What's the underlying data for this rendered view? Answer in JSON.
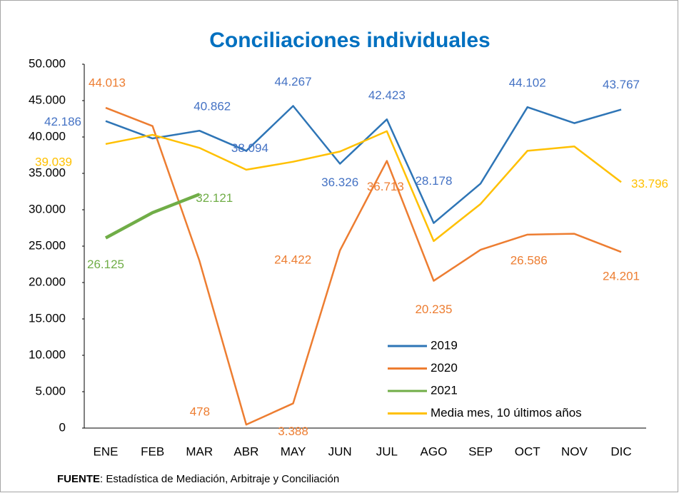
{
  "chart_data": {
    "type": "line",
    "title": "Conciliaciones individuales",
    "source_label": "FUENTE",
    "source_text": ": Estadística de Mediación, Arbitraje y Conciliación",
    "categories": [
      "ENE",
      "FEB",
      "MAR",
      "ABR",
      "MAY",
      "JUN",
      "JUL",
      "AGO",
      "SEP",
      "OCT",
      "NOV",
      "DIC"
    ],
    "series": [
      {
        "name": "2019",
        "color": "#2e75b6",
        "label_color": "#4472c4",
        "values": [
          42186,
          39800,
          40862,
          38094,
          44267,
          36326,
          42423,
          28178,
          33600,
          44102,
          41900,
          43767
        ],
        "value_labels": [
          "42.186",
          null,
          "40.862",
          "38.094",
          "44.267",
          "36.326",
          "42.423",
          "28.178",
          null,
          "44.102",
          null,
          "43.767"
        ]
      },
      {
        "name": "2020",
        "color": "#ed7d31",
        "label_color": "#ed7d31",
        "values": [
          44013,
          41500,
          23000,
          478,
          3388,
          24422,
          36713,
          20235,
          24500,
          26586,
          26700,
          24201
        ],
        "value_labels": [
          "44.013",
          null,
          null,
          "478",
          "3.388",
          "24.422",
          "36.713",
          "20.235",
          null,
          "26.586",
          null,
          "24.201"
        ]
      },
      {
        "name": "2021",
        "color": "#70ad47",
        "label_color": "#70ad47",
        "values": [
          26125,
          29600,
          32121,
          null,
          null,
          null,
          null,
          null,
          null,
          null,
          null,
          null
        ],
        "value_labels": [
          "26.125",
          null,
          "32.121",
          null,
          null,
          null,
          null,
          null,
          null,
          null,
          null,
          null
        ]
      },
      {
        "name": "Media mes, 10 últimos años",
        "color": "#ffc000",
        "label_color": "#ffc000",
        "values": [
          39039,
          40300,
          38500,
          35500,
          36600,
          38000,
          40800,
          25700,
          30800,
          38100,
          38700,
          33796
        ],
        "value_labels": [
          "39.039",
          null,
          null,
          null,
          null,
          null,
          null,
          null,
          null,
          null,
          null,
          "33.796"
        ]
      }
    ],
    "ylim": [
      0,
      50000
    ],
    "yticks": [
      {
        "value": 0,
        "label": "0"
      },
      {
        "value": 5000,
        "label": "5.000"
      },
      {
        "value": 10000,
        "label": "10.000"
      },
      {
        "value": 15000,
        "label": "15.000"
      },
      {
        "value": 20000,
        "label": "20.000"
      },
      {
        "value": 25000,
        "label": "25.000"
      },
      {
        "value": 30000,
        "label": "30.000"
      },
      {
        "value": 35000,
        "label": "35.000"
      },
      {
        "value": 40000,
        "label": "40.000"
      },
      {
        "value": 45000,
        "label": "45.000"
      },
      {
        "value": 50000,
        "label": "50.000"
      }
    ],
    "grid": false
  }
}
